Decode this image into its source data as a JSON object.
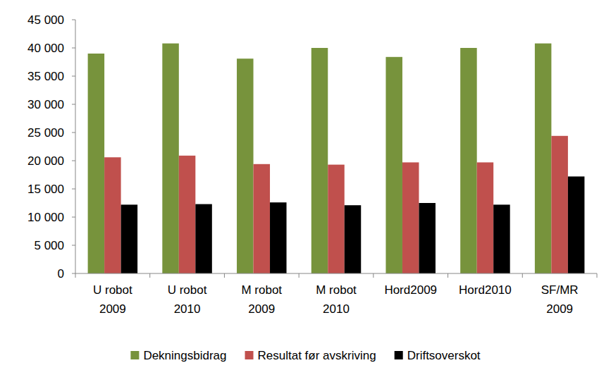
{
  "chart_data": {
    "type": "bar",
    "categories": [
      "U robot 2009",
      "U robot 2010",
      "M robot 2009",
      "M robot 2010",
      "Hord2009",
      "Hord2010",
      "SF/MR 2009"
    ],
    "series": [
      {
        "name": "Dekningsbidrag",
        "color": "#77933c",
        "values": [
          39000,
          40800,
          38100,
          40000,
          38400,
          40000,
          40800
        ]
      },
      {
        "name": "Resultat før avskriving",
        "color": "#c0504d",
        "values": [
          20600,
          20900,
          19400,
          19300,
          19700,
          19700,
          24400
        ]
      },
      {
        "name": "Driftsoverskot",
        "color": "#000000",
        "values": [
          12200,
          12300,
          12600,
          12100,
          12500,
          12200,
          17200
        ]
      }
    ],
    "ylim": [
      0,
      45000
    ],
    "yticks": [
      0,
      {
        "value": 5000,
        "label": "5 000"
      },
      {
        "value": 10000,
        "label": "10 000"
      },
      {
        "value": 15000,
        "label": "15 000"
      },
      {
        "value": 20000,
        "label": "20 000"
      },
      {
        "value": 25000,
        "label": "25 000"
      },
      {
        "value": 30000,
        "label": "30 000"
      },
      {
        "value": 35000,
        "label": "35 000"
      },
      {
        "value": 40000,
        "label": "40 000"
      },
      {
        "value": 45000,
        "label": "45 000"
      }
    ],
    "grid": false,
    "legend": "bottom"
  }
}
